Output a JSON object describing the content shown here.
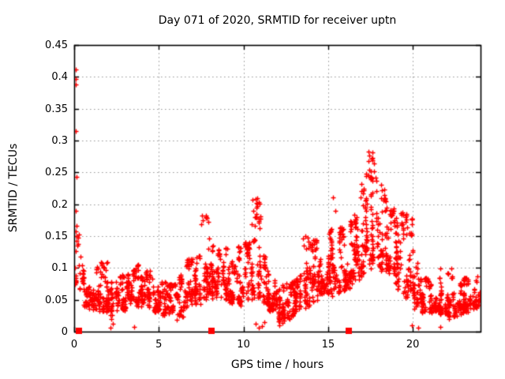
{
  "chart_data": {
    "type": "scatter",
    "title": "Day 071 of 2020, SRMTID for receiver uptn",
    "xlabel": "GPS time / hours",
    "ylabel": "SRMTID / TECUs",
    "xlim": [
      0,
      24
    ],
    "ylim": [
      0,
      0.45
    ],
    "xticks": [
      0,
      5,
      10,
      15,
      20
    ],
    "xtick_labels": [
      "0",
      "5",
      "10",
      "15",
      "20"
    ],
    "yticks": [
      0,
      0.05,
      0.1,
      0.15,
      0.2,
      0.25,
      0.3,
      0.35,
      0.4,
      0.45
    ],
    "ytick_labels": [
      "0",
      "0.05",
      "0.1",
      "0.15",
      "0.2",
      "0.25",
      "0.3",
      "0.35",
      "0.4",
      "0.45"
    ],
    "grid": true,
    "legend": "none",
    "colors": {
      "marker": "#ff0000",
      "grid": "#9a9a9a",
      "border": "#000000",
      "background": "#ffffff"
    },
    "series": [
      {
        "name": "srmtid-scatter",
        "marker": "plus",
        "note": "dense noisy band; bins are [x_start, bin_width_hours, y_min, y_max, point_count]",
        "bins": [
          [
            0.0,
            0.5,
            0.04,
            0.17,
            16
          ],
          [
            0.5,
            0.5,
            0.035,
            0.1,
            46
          ],
          [
            1.0,
            0.5,
            0.03,
            0.105,
            50
          ],
          [
            1.5,
            0.5,
            0.03,
            0.11,
            50
          ],
          [
            2.0,
            0.5,
            0.015,
            0.12,
            48
          ],
          [
            2.5,
            0.5,
            0.03,
            0.09,
            48
          ],
          [
            3.0,
            0.5,
            0.03,
            0.105,
            50
          ],
          [
            3.5,
            0.5,
            0.035,
            0.105,
            50
          ],
          [
            4.0,
            0.5,
            0.035,
            0.11,
            50
          ],
          [
            4.5,
            0.5,
            0.03,
            0.085,
            46
          ],
          [
            5.0,
            0.5,
            0.025,
            0.08,
            44
          ],
          [
            5.5,
            0.5,
            0.025,
            0.075,
            44
          ],
          [
            6.0,
            0.5,
            0.02,
            0.09,
            46
          ],
          [
            6.5,
            0.5,
            0.035,
            0.115,
            46
          ],
          [
            7.0,
            0.5,
            0.04,
            0.12,
            50
          ],
          [
            7.5,
            0.5,
            0.045,
            0.185,
            52
          ],
          [
            8.0,
            0.5,
            0.05,
            0.155,
            52
          ],
          [
            8.5,
            0.5,
            0.05,
            0.135,
            50
          ],
          [
            9.0,
            0.5,
            0.04,
            0.11,
            48
          ],
          [
            9.5,
            0.5,
            0.04,
            0.135,
            48
          ],
          [
            10.0,
            0.5,
            0.045,
            0.14,
            50
          ],
          [
            10.5,
            0.5,
            0.05,
            0.21,
            54
          ],
          [
            11.0,
            0.5,
            0.04,
            0.12,
            50
          ],
          [
            11.5,
            0.5,
            0.03,
            0.09,
            48
          ],
          [
            12.0,
            0.5,
            0.015,
            0.075,
            52
          ],
          [
            12.5,
            0.5,
            0.02,
            0.08,
            50
          ],
          [
            13.0,
            0.5,
            0.03,
            0.09,
            50
          ],
          [
            13.5,
            0.5,
            0.035,
            0.15,
            50
          ],
          [
            14.0,
            0.5,
            0.04,
            0.145,
            52
          ],
          [
            14.5,
            0.5,
            0.05,
            0.13,
            52
          ],
          [
            15.0,
            0.5,
            0.055,
            0.165,
            54
          ],
          [
            15.5,
            0.5,
            0.06,
            0.165,
            54
          ],
          [
            16.0,
            0.5,
            0.065,
            0.175,
            54
          ],
          [
            16.5,
            0.5,
            0.075,
            0.23,
            54
          ],
          [
            17.0,
            0.5,
            0.09,
            0.25,
            54
          ],
          [
            17.5,
            0.5,
            0.1,
            0.285,
            56
          ],
          [
            18.0,
            0.5,
            0.09,
            0.225,
            54
          ],
          [
            18.5,
            0.5,
            0.08,
            0.195,
            50
          ],
          [
            19.0,
            0.5,
            0.06,
            0.19,
            48
          ],
          [
            19.5,
            0.5,
            0.05,
            0.185,
            46
          ],
          [
            20.0,
            0.5,
            0.035,
            0.11,
            46
          ],
          [
            20.5,
            0.5,
            0.03,
            0.085,
            46
          ],
          [
            21.0,
            0.5,
            0.03,
            0.075,
            46
          ],
          [
            21.5,
            0.5,
            0.025,
            0.1,
            48
          ],
          [
            22.0,
            0.5,
            0.02,
            0.1,
            48
          ],
          [
            22.5,
            0.5,
            0.025,
            0.08,
            46
          ],
          [
            23.0,
            0.5,
            0.03,
            0.085,
            48
          ],
          [
            23.5,
            0.5,
            0.035,
            0.09,
            40
          ]
        ],
        "notable_points": [
          [
            0.07,
            0.411
          ],
          [
            0.08,
            0.397
          ],
          [
            0.09,
            0.388
          ],
          [
            0.07,
            0.315
          ],
          [
            0.12,
            0.243
          ],
          [
            0.1,
            0.19
          ],
          [
            0.14,
            0.166
          ],
          [
            0.1,
            0.158
          ],
          [
            0.16,
            0.15
          ],
          [
            0.12,
            0.143
          ],
          [
            0.18,
            0.135
          ],
          [
            0.1,
            0.126
          ],
          [
            0.22,
            0.147
          ],
          [
            0.28,
            0.152
          ],
          [
            0.25,
            0.138
          ],
          [
            0.35,
            0.118
          ],
          [
            0.05,
            0.1
          ],
          [
            0.06,
            0.075
          ],
          [
            7.5,
            0.168
          ],
          [
            7.55,
            0.182
          ],
          [
            7.6,
            0.175
          ],
          [
            10.5,
            0.168
          ],
          [
            10.52,
            0.207
          ],
          [
            10.56,
            0.19
          ],
          [
            15.3,
            0.211
          ],
          [
            15.42,
            0.19
          ],
          [
            16.95,
            0.232
          ],
          [
            17.1,
            0.225
          ],
          [
            17.38,
            0.268
          ],
          [
            17.4,
            0.283
          ],
          [
            17.4,
            0.246
          ],
          [
            17.42,
            0.276
          ],
          [
            17.45,
            0.254
          ],
          [
            18.15,
            0.23
          ],
          [
            18.3,
            0.21
          ],
          [
            18.45,
            0.195
          ],
          [
            18.7,
            0.161
          ],
          [
            19.3,
            0.186
          ],
          [
            19.45,
            0.183
          ],
          [
            19.8,
            0.155
          ],
          [
            2.15,
            0.006
          ],
          [
            2.3,
            0.012
          ],
          [
            3.55,
            0.008
          ],
          [
            6.05,
            0.018
          ],
          [
            10.7,
            0.012
          ],
          [
            10.9,
            0.006
          ],
          [
            11.1,
            0.009
          ],
          [
            11.25,
            0.015
          ],
          [
            12.1,
            0.01
          ],
          [
            12.3,
            0.014
          ],
          [
            19.95,
            0.01
          ],
          [
            20.3,
            0.006
          ],
          [
            21.6,
            0.008
          ]
        ]
      },
      {
        "name": "baseline-markers",
        "marker": "filled-square",
        "y": 0,
        "x_values": [
          0.3,
          8.1,
          16.2
        ]
      }
    ]
  }
}
